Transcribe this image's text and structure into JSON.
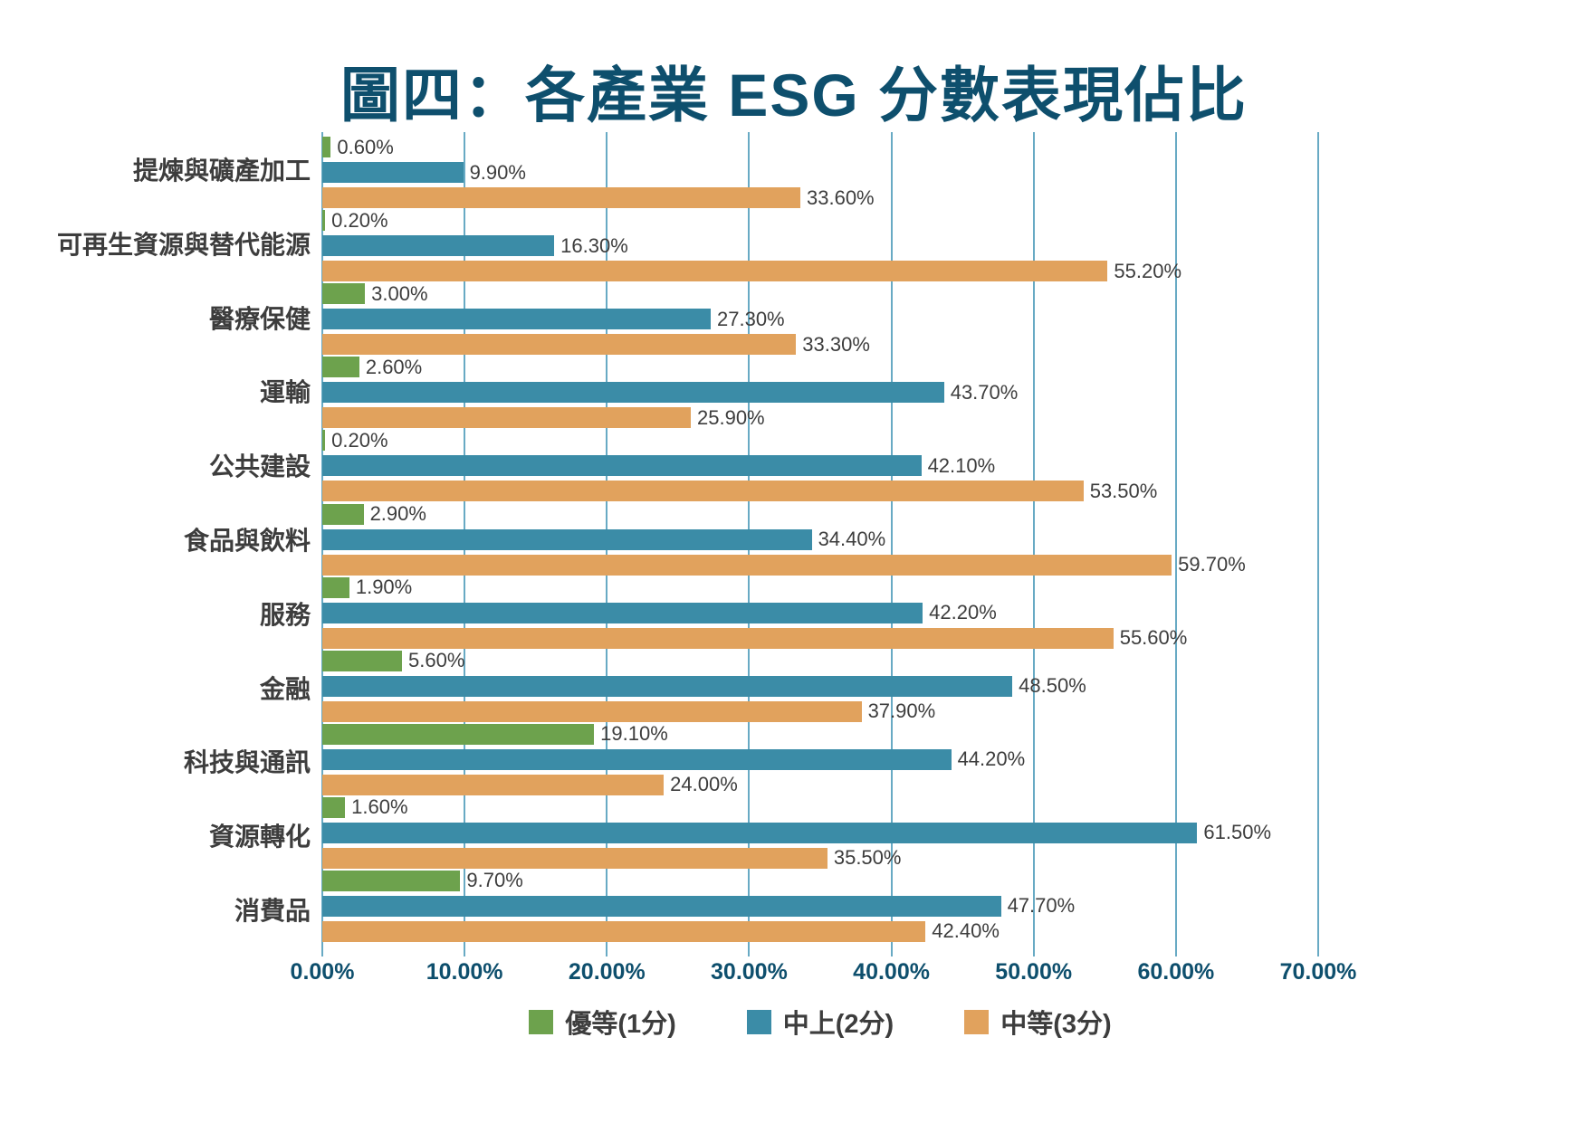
{
  "title": "圖四：各產業 ESG 分數表現佔比",
  "colors": {
    "title_text": "#0e4f6d",
    "axis_text": "#0e4f6d",
    "gridline": "#68aac4",
    "category_text": "#3d3d3d",
    "value_text": "#3d3d3d",
    "green": "#6da24d",
    "blue": "#3b8ca7",
    "orange": "#e1a25d"
  },
  "chart_data": {
    "type": "bar",
    "orientation": "horizontal",
    "title": "圖四：各產業 ESG 分數表現佔比",
    "xlabel": "",
    "ylabel": "",
    "xlim": [
      0,
      70
    ],
    "x_ticks": [
      "0.00%",
      "10.00%",
      "20.00%",
      "30.00%",
      "40.00%",
      "50.00%",
      "60.00%",
      "70.00%"
    ],
    "grid": "vertical",
    "legend_position": "bottom",
    "categories": [
      "提煉與礦產加工",
      "可再生資源與替代能源",
      "醫療保健",
      "運輸",
      "公共建設",
      "食品與飲料",
      "服務",
      "金融",
      "科技與通訊",
      "資源轉化",
      "消費品"
    ],
    "series": [
      {
        "name": "優等(1分)",
        "color": "#6da24d",
        "values": [
          0.6,
          0.2,
          3.0,
          2.6,
          0.2,
          2.9,
          1.9,
          5.6,
          19.1,
          1.6,
          9.7
        ],
        "labels": [
          "0.60%",
          "0.20%",
          "3.00%",
          "2.60%",
          "0.20%",
          "2.90%",
          "1.90%",
          "5.60%",
          "19.10%",
          "1.60%",
          "9.70%"
        ]
      },
      {
        "name": "中上(2分)",
        "color": "#3b8ca7",
        "values": [
          9.9,
          16.3,
          27.3,
          43.7,
          42.1,
          34.4,
          42.2,
          48.5,
          44.2,
          61.5,
          47.7
        ],
        "labels": [
          "9.90%",
          "16.30%",
          "27.30%",
          "43.70%",
          "42.10%",
          "34.40%",
          "42.20%",
          "48.50%",
          "44.20%",
          "61.50%",
          "47.70%"
        ]
      },
      {
        "name": "中等(3分)",
        "color": "#e1a25d",
        "values": [
          33.6,
          55.2,
          33.3,
          25.9,
          53.5,
          59.7,
          55.6,
          37.9,
          24.0,
          35.5,
          42.4
        ],
        "labels": [
          "33.60%",
          "55.20%",
          "33.30%",
          "25.90%",
          "53.50%",
          "59.70%",
          "55.60%",
          "37.90%",
          "24.00%",
          "35.50%",
          "42.40%"
        ]
      }
    ]
  }
}
